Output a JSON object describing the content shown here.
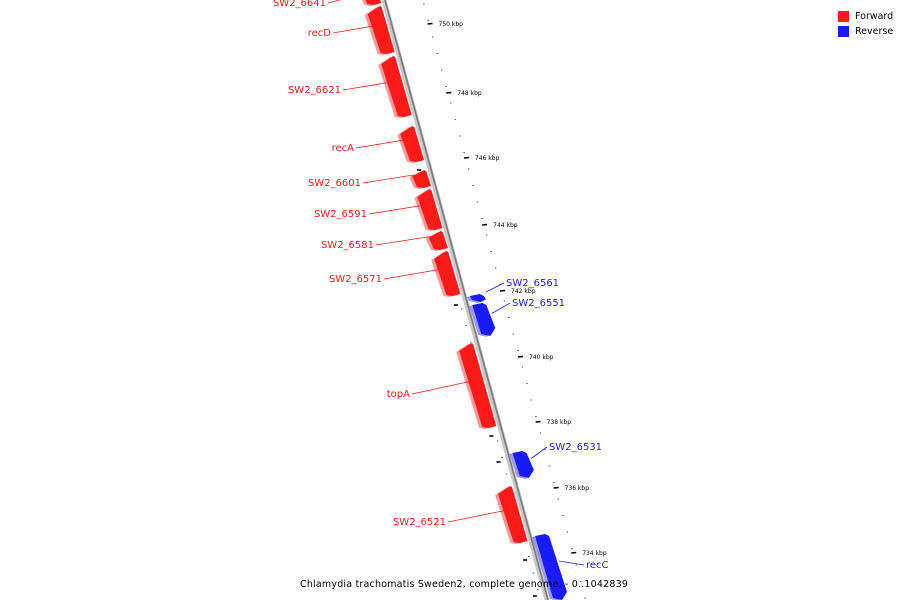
{
  "colors": {
    "forward": "#ff1a1a",
    "reverse": "#1a1aff",
    "backbone": "#888888"
  },
  "legend": [
    {
      "label": "Forward",
      "color": "#ff1a1a"
    },
    {
      "label": "Reverse",
      "color": "#1a1aff"
    }
  ],
  "caption": "Chlamydia trachomatis Sweden2, complete genome. - 0..1042839",
  "ticks": [
    "750 kbp",
    "748 kbp",
    "746 kbp",
    "744 kbp",
    "742 kbp",
    "740 kbp",
    "738 kbp",
    "736 kbp",
    "734 kbp"
  ],
  "genes": [
    {
      "label": "SW2_6641",
      "strand": "forward"
    },
    {
      "label": "recD",
      "strand": "forward"
    },
    {
      "label": "SW2_6621",
      "strand": "forward"
    },
    {
      "label": "recA",
      "strand": "forward"
    },
    {
      "label": "SW2_6601",
      "strand": "forward"
    },
    {
      "label": "SW2_6591",
      "strand": "forward"
    },
    {
      "label": "SW2_6581",
      "strand": "forward"
    },
    {
      "label": "SW2_6571",
      "strand": "forward"
    },
    {
      "label": "SW2_6561",
      "strand": "reverse"
    },
    {
      "label": "SW2_6551",
      "strand": "reverse"
    },
    {
      "label": "topA",
      "strand": "forward"
    },
    {
      "label": "SW2_6531",
      "strand": "reverse"
    },
    {
      "label": "SW2_6521",
      "strand": "forward"
    },
    {
      "label": "recC",
      "strand": "reverse"
    }
  ]
}
